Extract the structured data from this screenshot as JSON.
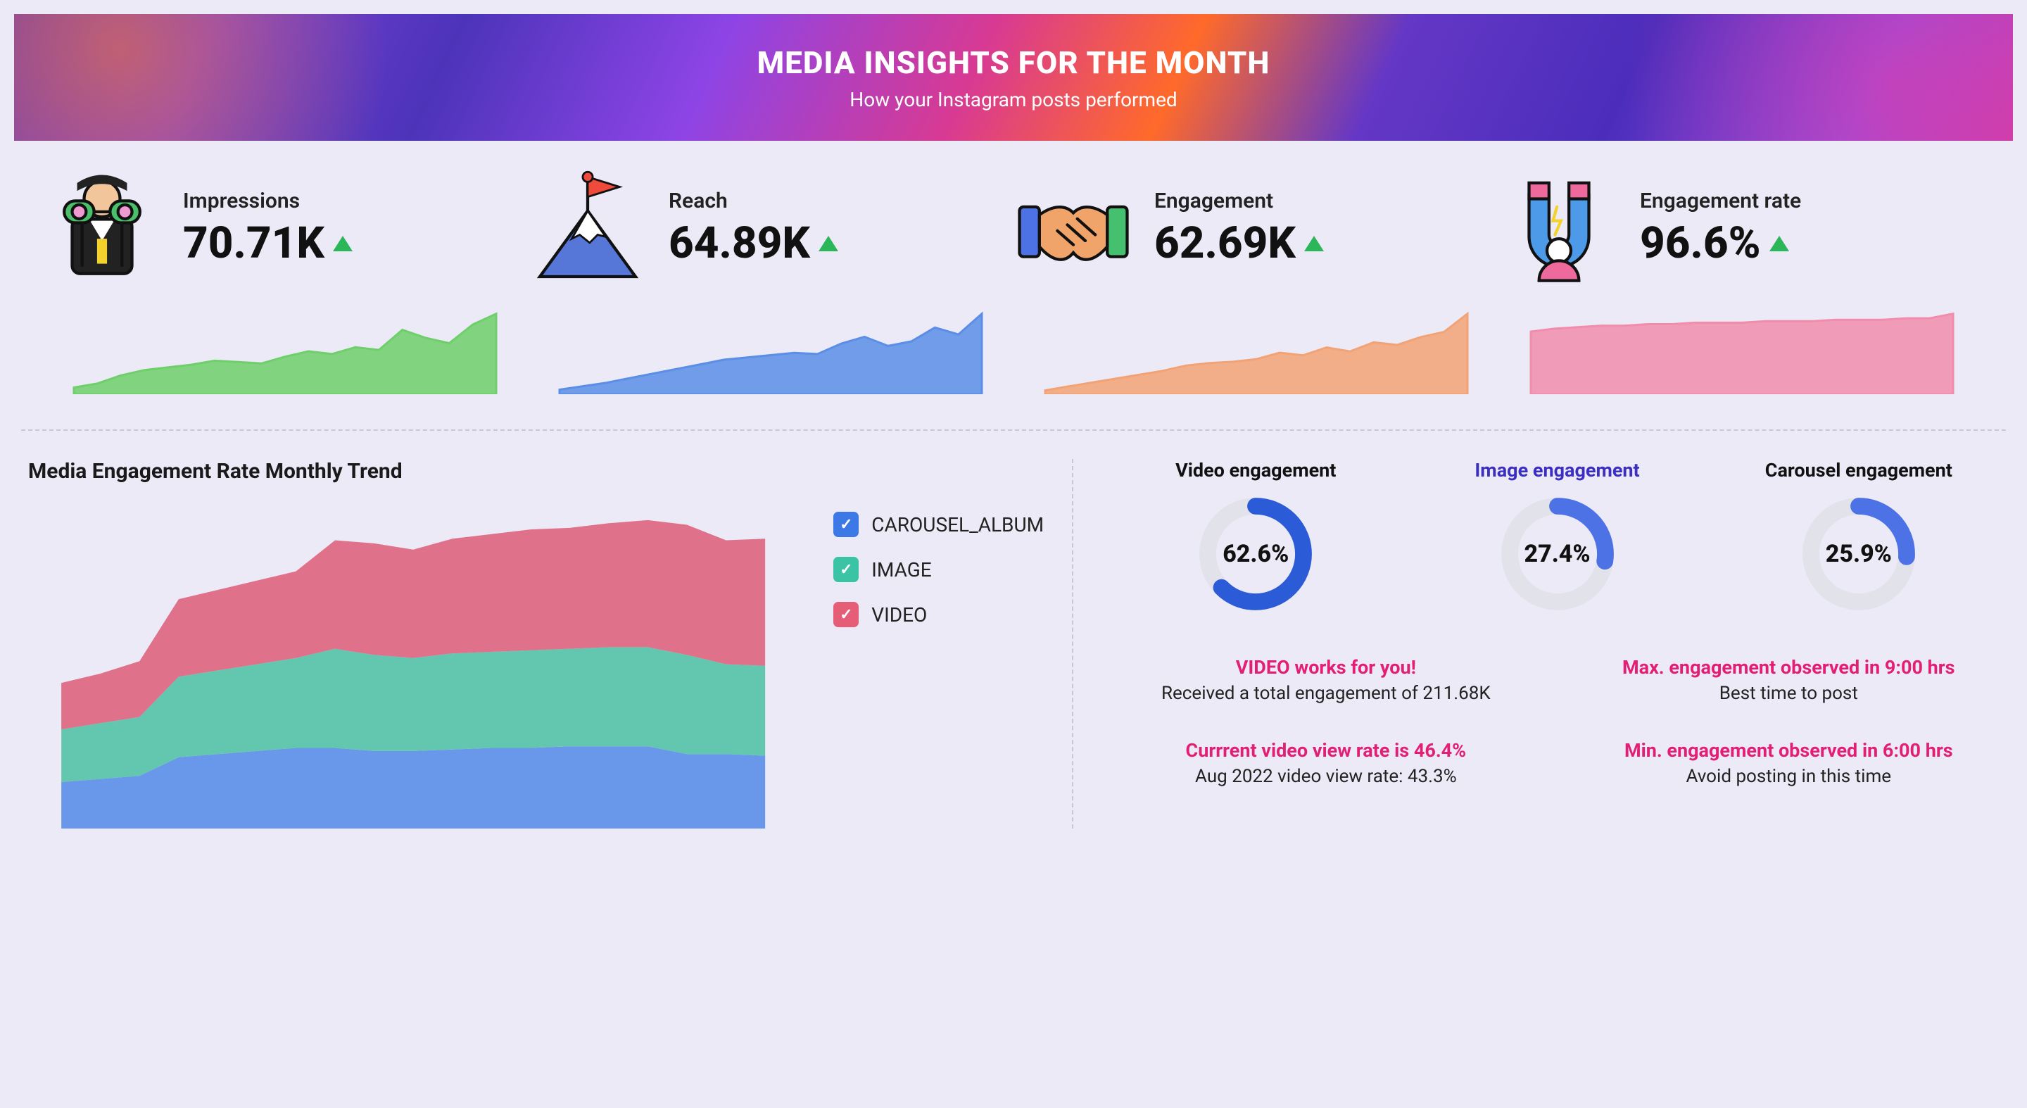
{
  "banner": {
    "title": "MEDIA INSIGHTS FOR THE MONTH",
    "subtitle": "How your Instagram posts performed"
  },
  "kpis": [
    {
      "key": "impressions",
      "label": "Impressions",
      "value": "70.71K",
      "trend": "up",
      "spark_color": "#6fcf6a",
      "spark_points": [
        5,
        8,
        14,
        18,
        20,
        22,
        25,
        24,
        23,
        28,
        32,
        30,
        35,
        33,
        48,
        42,
        38,
        52,
        60
      ]
    },
    {
      "key": "reach",
      "label": "Reach",
      "value": "64.89K",
      "trend": "up",
      "spark_color": "#5b8ee6",
      "spark_points": [
        4,
        7,
        10,
        14,
        18,
        22,
        26,
        30,
        32,
        34,
        36,
        35,
        44,
        50,
        42,
        46,
        58,
        52,
        70
      ]
    },
    {
      "key": "engagement",
      "label": "Engagement",
      "value": "62.69K",
      "trend": "up",
      "spark_color": "#f2a376",
      "spark_points": [
        3,
        6,
        9,
        12,
        15,
        18,
        22,
        24,
        25,
        27,
        32,
        30,
        36,
        33,
        40,
        38,
        44,
        48,
        62
      ]
    },
    {
      "key": "engagement_rate",
      "label": "Engagement rate",
      "value": "96.6%",
      "trend": "up",
      "spark_color": "#f18dab",
      "spark_points": [
        42,
        44,
        45,
        46,
        46,
        47,
        47,
        48,
        48,
        48,
        49,
        49,
        49,
        50,
        50,
        50,
        51,
        51,
        54
      ]
    }
  ],
  "trend_chart": {
    "title": "Media Engagement Rate Monthly Trend",
    "legend": [
      {
        "label": "CAROUSEL_ALBUM",
        "color": "#3c79e6"
      },
      {
        "label": "IMAGE",
        "color": "#3bc3a5"
      },
      {
        "label": "VIDEO",
        "color": "#e65d78"
      }
    ],
    "series": {
      "carousel": [
        30,
        32,
        34,
        46,
        48,
        50,
        52,
        52,
        50,
        50,
        51,
        52,
        52,
        53,
        53,
        53,
        48,
        48,
        47
      ],
      "image": [
        34,
        36,
        38,
        52,
        54,
        56,
        58,
        64,
        62,
        60,
        62,
        62,
        63,
        63,
        64,
        64,
        64,
        58,
        58
      ],
      "video": [
        30,
        32,
        36,
        50,
        52,
        54,
        56,
        70,
        72,
        70,
        74,
        76,
        78,
        78,
        80,
        82,
        84,
        80,
        82
      ]
    },
    "colors": {
      "carousel": "#5b8fe8",
      "image": "#54c3a7",
      "video": "#df647e"
    }
  },
  "gauges": [
    {
      "title": "Video engagement",
      "title_color": "#111",
      "percent": 62.6,
      "color": "#2b5bd7",
      "track": "#e2e2ea"
    },
    {
      "title": "Image engagement",
      "title_color": "#3a2fc0",
      "percent": 27.4,
      "color": "#4c72e6",
      "track": "#e2e2ea"
    },
    {
      "title": "Carousel engagement",
      "title_color": "#111",
      "percent": 25.9,
      "color": "#4c72e6",
      "track": "#e2e2ea"
    }
  ],
  "info": [
    {
      "head": "VIDEO works for you!",
      "sub": "Received a total engagement of 211.68K"
    },
    {
      "head": "Max. engagement observed in 9:00 hrs",
      "sub": "Best time to post"
    },
    {
      "head": "Currrent video view rate is 46.4%",
      "sub": "Aug 2022 video view rate: 43.3%"
    },
    {
      "head": "Min. engagement observed in 6:00 hrs",
      "sub": "Avoid posting in this time"
    }
  ]
}
